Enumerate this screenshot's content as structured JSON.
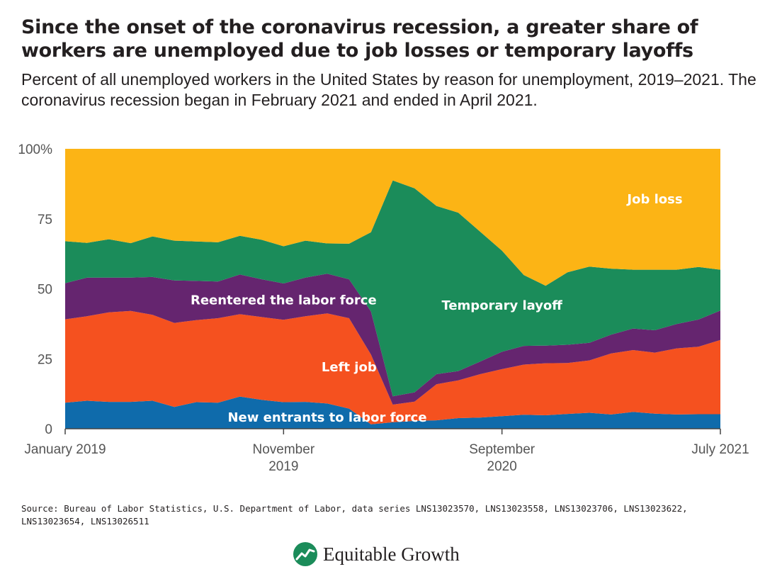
{
  "title": "Since the onset of the coronavirus recession, a greater share of workers are unemployed due to job losses or temporary layoffs",
  "subtitle": "Percent of all unemployed workers in the United States by reason for unemployment, 2019–2021. The coronavirus recession began in February 2021 and ended in April 2021.",
  "source": "Source: Bureau of Labor Statistics, U.S. Department of Labor, data series LNS13023570, LNS13023558, LNS13023706, LNS13023622, LNS13023654, LNS13026511",
  "logo": {
    "text": "Equitable Growth",
    "icon": "growth-chart-icon"
  },
  "chart_data": {
    "type": "area",
    "stacked": true,
    "x": [
      "2019-01",
      "2019-02",
      "2019-03",
      "2019-04",
      "2019-05",
      "2019-06",
      "2019-07",
      "2019-08",
      "2019-09",
      "2019-10",
      "2019-11",
      "2019-12",
      "2020-01",
      "2020-02",
      "2020-03",
      "2020-04",
      "2020-05",
      "2020-06",
      "2020-07",
      "2020-08",
      "2020-09",
      "2020-10",
      "2020-11",
      "2020-12",
      "2021-01",
      "2021-02",
      "2021-03",
      "2021-04",
      "2021-05",
      "2021-06",
      "2021-07"
    ],
    "x_tick_labels": [
      {
        "x": "2019-01",
        "lines": [
          "January 2019"
        ]
      },
      {
        "x": "2019-11",
        "lines": [
          "November",
          "2019"
        ]
      },
      {
        "x": "2020-09",
        "lines": [
          "September",
          "2020"
        ]
      },
      {
        "x": "2021-07",
        "lines": [
          "July 2021"
        ]
      }
    ],
    "ylim": [
      0,
      100
    ],
    "y_ticks": [
      {
        "value": 0,
        "label": "0"
      },
      {
        "value": 25,
        "label": "25"
      },
      {
        "value": 50,
        "label": "50"
      },
      {
        "value": 75,
        "label": "75"
      },
      {
        "value": 100,
        "label": "100%"
      }
    ],
    "series": [
      {
        "name": "New entrants to labor force",
        "color": "#0f6bab",
        "label_color": "#ffffff",
        "label_at": [
          "2020-01",
          4
        ],
        "values": [
          9.3,
          10,
          9.6,
          9.6,
          10,
          7.8,
          9.5,
          9.3,
          11.5,
          10.3,
          9.5,
          9.6,
          9,
          7.2,
          1.6,
          2.3,
          2.8,
          3,
          3.8,
          4,
          4.5,
          5,
          4.8,
          5.3,
          5.7,
          5.1,
          6,
          5.4,
          5.1,
          5.2,
          5.2
        ]
      },
      {
        "name": "Left job",
        "color": "#f5511f",
        "label_color": "#ffffff",
        "label_at": [
          "2020-02",
          22
        ],
        "values": [
          29.8,
          30.2,
          32,
          32.5,
          30.7,
          30,
          29.3,
          30.2,
          29.4,
          29.6,
          29.4,
          30.6,
          32.2,
          32.3,
          24.9,
          6.3,
          6.9,
          12.9,
          13.5,
          15.5,
          16.8,
          17.9,
          18.6,
          18.2,
          18.7,
          21.8,
          22.1,
          21.8,
          23.6,
          24.1,
          26.5
        ]
      },
      {
        "name": "Reentered the labor force",
        "color": "#65256f",
        "label_color": "#ffffff",
        "label_at": [
          "2019-11",
          46
        ],
        "values": [
          12.9,
          13.8,
          12.4,
          11.9,
          13.5,
          15.2,
          14,
          13.1,
          14.2,
          13.5,
          13,
          13.8,
          14.2,
          13.9,
          15.4,
          3,
          3.3,
          3.6,
          3.3,
          4.5,
          6.2,
          6.7,
          6.3,
          6.5,
          6.3,
          6.7,
          7.7,
          8,
          8.7,
          9.7,
          10.5
        ]
      },
      {
        "name": "Temporary layoff",
        "color": "#1b8c5a",
        "label_color": "#ffffff",
        "label_at": [
          "2020-09",
          44
        ],
        "values": [
          15,
          12.4,
          13.7,
          12.3,
          14.5,
          14.2,
          14.1,
          14,
          13.8,
          14.1,
          13.3,
          13.2,
          10.8,
          12.7,
          28.3,
          77.1,
          72.9,
          60.1,
          56.6,
          46.4,
          36.1,
          25.3,
          21.4,
          25.9,
          27.2,
          23.6,
          21,
          21.6,
          19.4,
          18.8,
          14.6
        ]
      },
      {
        "name": "Job loss",
        "color": "#fcb415",
        "label_color": "#ffffff",
        "label_at": [
          "2021-04",
          82
        ],
        "values": [
          33,
          33.6,
          32.3,
          33.7,
          31.3,
          32.8,
          33.1,
          33.4,
          31.1,
          32.5,
          34.8,
          32.8,
          33.8,
          33.9,
          29.8,
          11.3,
          14.1,
          20.4,
          22.8,
          29.6,
          36.4,
          45.1,
          48.9,
          44.1,
          42.1,
          42.8,
          43.2,
          43.2,
          43.2,
          42.2,
          43.2
        ]
      }
    ]
  }
}
